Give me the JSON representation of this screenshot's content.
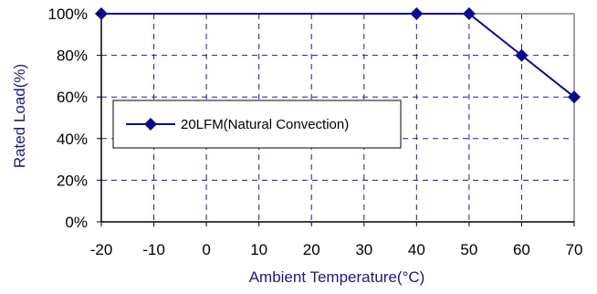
{
  "chart_data": {
    "type": "line",
    "xlabel": "Ambient Temperature(°C)",
    "ylabel": "Rated Load(%)",
    "xlim": [
      -20,
      70
    ],
    "ylim": [
      0,
      100
    ],
    "x_ticks": [
      -20,
      -10,
      0,
      10,
      20,
      30,
      40,
      50,
      60,
      70
    ],
    "y_ticks": [
      0,
      20,
      40,
      60,
      80,
      100
    ],
    "y_tick_labels": [
      "0%",
      "20%",
      "40%",
      "60%",
      "80%",
      "100%"
    ],
    "grid": "dashed",
    "legend_position": "middle-left",
    "series": [
      {
        "name": "20LFM(Natural Convection)",
        "color": "#0a0a8c",
        "marker": "diamond",
        "x": [
          -20,
          40,
          50,
          60,
          70
        ],
        "y": [
          100,
          100,
          100,
          80,
          60
        ]
      }
    ]
  },
  "colors": {
    "grid": "#1c1c9c",
    "frame": "#808080",
    "axis": "#000000"
  }
}
